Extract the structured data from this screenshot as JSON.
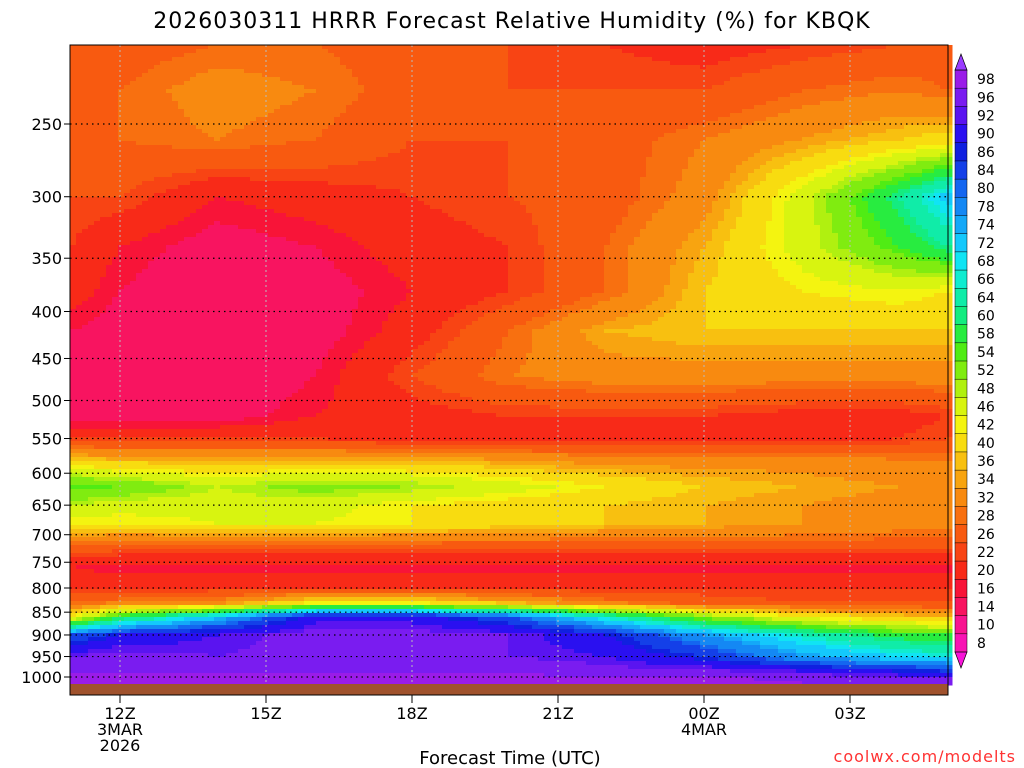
{
  "chart_data": {
    "type": "heatmap",
    "title": "2026030311 HRRR Forecast Relative Humidity (%) for KBQK",
    "xlabel": "Forecast Time (UTC)",
    "ylabel": "",
    "credit": "coolwx.com/modelts",
    "x_ticks": [
      {
        "hour": 12,
        "lines": [
          "12Z",
          "3MAR",
          "2026"
        ]
      },
      {
        "hour": 15,
        "lines": [
          "15Z"
        ]
      },
      {
        "hour": 18,
        "lines": [
          "18Z"
        ]
      },
      {
        "hour": 21,
        "lines": [
          "21Z"
        ]
      },
      {
        "hour": 24,
        "lines": [
          "00Z",
          "4MAR"
        ]
      },
      {
        "hour": 27,
        "lines": [
          "03Z"
        ]
      }
    ],
    "xlim": [
      11,
      29
    ],
    "y_ticks": [
      250,
      300,
      350,
      400,
      450,
      500,
      550,
      600,
      650,
      700,
      750,
      800,
      850,
      900,
      950,
      1000
    ],
    "ylim_hPa": [
      200,
      1025
    ],
    "y_scale": "log",
    "grid": true,
    "colorbar": {
      "labels": [
        98,
        96,
        92,
        90,
        86,
        84,
        80,
        78,
        74,
        72,
        68,
        66,
        64,
        60,
        58,
        54,
        52,
        48,
        46,
        42,
        40,
        36,
        34,
        32,
        28,
        26,
        22,
        20,
        16,
        14,
        10,
        8
      ],
      "colors": [
        "#9a1ce8",
        "#7a1cf0",
        "#5a14f0",
        "#2a10f0",
        "#1020e0",
        "#1440e8",
        "#1466f0",
        "#1488f4",
        "#14a8f8",
        "#14c8fc",
        "#10e4f4",
        "#10ecd0",
        "#10eca8",
        "#14ec80",
        "#28ec40",
        "#50ec14",
        "#80ec10",
        "#b0f010",
        "#d8f410",
        "#f4f410",
        "#f8dc10",
        "#f8c010",
        "#f8a410",
        "#f88a10",
        "#f87010",
        "#f85a10",
        "#f84414",
        "#f82a18",
        "#f81438",
        "#f81460",
        "#f81490",
        "#f814b4"
      ]
    },
    "rh_columns_hours": [
      11,
      12,
      14,
      16,
      18,
      20,
      22,
      24,
      26,
      28,
      29
    ],
    "rh_levels_hPa": [
      205,
      230,
      260,
      300,
      340,
      380,
      420,
      470,
      520,
      550,
      580,
      620,
      650,
      680,
      720,
      760,
      800,
      830,
      860,
      900,
      950,
      990,
      1010
    ],
    "rh_grid": [
      [
        26,
        24,
        26,
        26,
        24,
        22,
        20,
        18,
        20,
        22,
        24
      ],
      [
        26,
        26,
        30,
        28,
        24,
        22,
        22,
        22,
        26,
        28,
        26
      ],
      [
        24,
        26,
        28,
        26,
        22,
        22,
        24,
        28,
        32,
        36,
        38
      ],
      [
        22,
        22,
        16,
        18,
        20,
        22,
        24,
        30,
        44,
        60,
        70
      ],
      [
        20,
        16,
        12,
        14,
        18,
        20,
        26,
        34,
        44,
        54,
        60
      ],
      [
        18,
        14,
        10,
        12,
        16,
        20,
        26,
        36,
        40,
        42,
        40
      ],
      [
        14,
        12,
        10,
        12,
        18,
        26,
        34,
        36,
        36,
        36,
        36
      ],
      [
        12,
        12,
        10,
        14,
        22,
        28,
        30,
        30,
        30,
        30,
        30
      ],
      [
        12,
        12,
        12,
        16,
        18,
        20,
        20,
        20,
        18,
        18,
        20
      ],
      [
        20,
        20,
        20,
        20,
        18,
        18,
        18,
        18,
        18,
        20,
        22
      ],
      [
        36,
        34,
        34,
        34,
        34,
        32,
        30,
        30,
        30,
        28,
        28
      ],
      [
        54,
        52,
        46,
        50,
        48,
        44,
        40,
        36,
        34,
        32,
        32
      ],
      [
        46,
        44,
        44,
        44,
        40,
        38,
        36,
        34,
        32,
        30,
        30
      ],
      [
        40,
        40,
        42,
        42,
        40,
        38,
        36,
        34,
        32,
        30,
        30
      ],
      [
        26,
        24,
        24,
        24,
        24,
        24,
        24,
        24,
        24,
        24,
        24
      ],
      [
        16,
        14,
        14,
        14,
        14,
        14,
        14,
        14,
        14,
        14,
        14
      ],
      [
        20,
        20,
        20,
        20,
        20,
        20,
        20,
        20,
        20,
        20,
        20
      ],
      [
        26,
        28,
        30,
        40,
        40,
        34,
        28,
        24,
        22,
        22,
        22
      ],
      [
        40,
        56,
        70,
        88,
        88,
        80,
        64,
        50,
        40,
        36,
        34
      ],
      [
        80,
        86,
        90,
        94,
        94,
        92,
        86,
        74,
        64,
        56,
        54
      ],
      [
        92,
        94,
        92,
        94,
        94,
        92,
        90,
        84,
        74,
        68,
        66
      ],
      [
        96,
        96,
        96,
        96,
        96,
        96,
        94,
        94,
        92,
        88,
        86
      ],
      [
        98,
        98,
        98,
        98,
        98,
        98,
        98,
        98,
        96,
        96,
        96
      ]
    ],
    "ground_color": "#a0522d"
  }
}
